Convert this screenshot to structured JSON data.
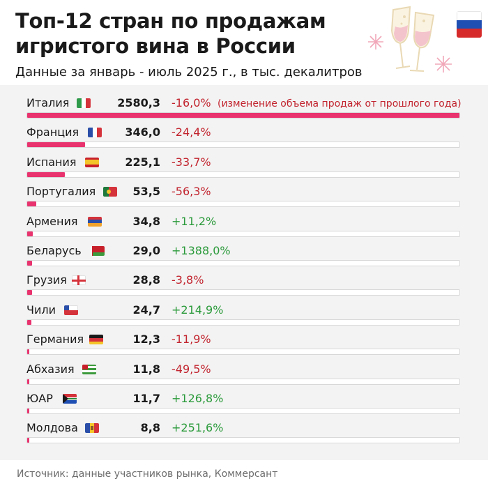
{
  "header": {
    "title": "Топ-12 стран по продажам игристого вина в России",
    "subtitle": "Данные за январь - июль 2025 г., в тыс. декалитров"
  },
  "note": "(изменение объема продаж от прошлого года)",
  "source": "Источник: данные участников рынка, Коммерсант",
  "colors": {
    "bar": "#e8336f",
    "negative": "#c2242e",
    "positive": "#2a9a3a",
    "panel": "#f3f3f3"
  },
  "chart_data": {
    "type": "bar",
    "orientation": "horizontal",
    "title": "Топ-12 стран по продажам игристого вина в России",
    "subtitle": "Данные за январь - июль 2025 г., в тыс. декалитров",
    "xlim": [
      0,
      2580.3
    ],
    "categories": [
      "Италия",
      "Франция",
      "Испания",
      "Португалия",
      "Армения",
      "Беларусь",
      "Грузия",
      "Чили",
      "Германия",
      "Абхазия",
      "ЮАР",
      "Молдова"
    ],
    "values": [
      2580.3,
      346.0,
      225.1,
      53.5,
      34.8,
      29.0,
      28.8,
      24.7,
      12.3,
      11.8,
      11.7,
      8.8
    ],
    "value_labels": [
      "2580,3",
      "346,0",
      "225,1",
      "53,5",
      "34,8",
      "29,0",
      "28,8",
      "24,7",
      "12,3",
      "11,8",
      "11,7",
      "8,8"
    ],
    "change_labels": [
      "-16,0%",
      "-24,4%",
      "-33,7%",
      "-56,3%",
      "+11,2%",
      "+1388,0%",
      "-3,8%",
      "+214,9%",
      "-11,9%",
      "-49,5%",
      "+126,8%",
      "+251,6%"
    ],
    "flags": [
      "italy-flag",
      "france-flag",
      "spain-flag",
      "portugal-flag",
      "armenia-flag",
      "belarus-flag",
      "georgia-flag",
      "chile-flag",
      "germany-flag",
      "abkhazia-flag",
      "south-africa-flag",
      "moldova-flag"
    ]
  }
}
